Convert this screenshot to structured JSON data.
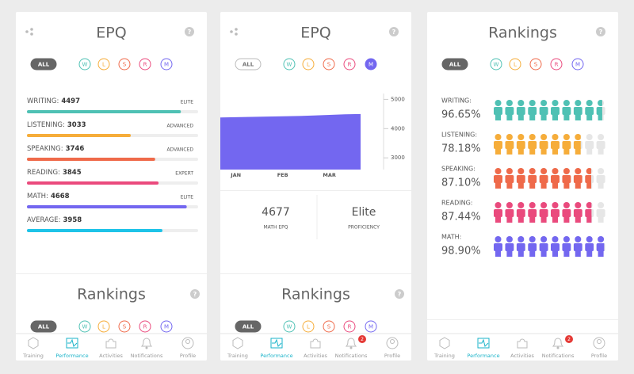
{
  "screens": [
    {
      "title": "EPQ",
      "help": "?",
      "filters": [
        "ALL",
        "W",
        "L",
        "S",
        "R",
        "M"
      ],
      "active_filter": 0,
      "scores": [
        {
          "label": "WRITING:",
          "value": 4497,
          "level": "ELITE"
        },
        {
          "label": "LISTENING:",
          "value": 3033,
          "level": "ADVANCED"
        },
        {
          "label": "SPEAKING:",
          "value": 3746,
          "level": "ADVANCED"
        },
        {
          "label": "READING:",
          "value": 3845,
          "level": "EXPERT"
        },
        {
          "label": "MATH:",
          "value": 4668,
          "level": "ELITE"
        },
        {
          "label": "AVERAGE:",
          "value": 3958
        }
      ],
      "section": "Rankings",
      "section_help": "?",
      "section_filters": [
        "ALL",
        "W",
        "L",
        "S",
        "R",
        "M"
      ],
      "section_active_filter": 0,
      "nav": [
        "Training",
        "Performance",
        "Activities",
        "Notifications",
        "Profile"
      ],
      "nav_active": 1
    },
    {
      "title": "EPQ",
      "help": "?",
      "filters": [
        "ALL",
        "W",
        "L",
        "S",
        "R",
        "M"
      ],
      "active_filter": 5,
      "chart": {
        "type": "area",
        "color": "#7367f0",
        "categories": [
          null,
          "JAN",
          null,
          null,
          "FEB",
          null,
          null,
          "MAR",
          null,
          null
        ],
        "values": [
          4380,
          4390,
          4400,
          4410,
          4420,
          4430,
          4450,
          4470,
          4490,
          4500
        ],
        "ylim": [
          2600,
          5200
        ],
        "yticks": [
          3000,
          4000,
          5000
        ]
      },
      "stats": [
        {
          "value": 4677,
          "label": "MATH EPQ"
        },
        {
          "value": "Elite",
          "label": "PROFICIENCY"
        }
      ],
      "section": "Rankings",
      "section_help": "?",
      "section_filters": [
        "ALL",
        "W",
        "L",
        "S",
        "R",
        "M"
      ],
      "section_active_filter": 0,
      "nav": [
        "Training",
        "Performance",
        "Activities",
        "Notifications",
        "Profile"
      ],
      "nav_active": 1,
      "badge": "2"
    },
    {
      "title": "Rankings",
      "help": "?",
      "filters": [
        "ALL",
        "W",
        "L",
        "S",
        "R",
        "M"
      ],
      "active_filter": 0,
      "rankings": [
        {
          "label": "WRITING:",
          "value": 96.65,
          "value_label": "96.65%"
        },
        {
          "label": "LISTENING:",
          "value": 78.18,
          "value_label": "78.18%"
        },
        {
          "label": "SPEAKING:",
          "value": 87.1,
          "value_label": "87.10%"
        },
        {
          "label": "READING:",
          "value": 87.44,
          "value_label": "87.44%"
        },
        {
          "label": "MATH:",
          "value": 98.9,
          "value_label": "98.90%"
        }
      ],
      "nav": [
        "Training",
        "Performance",
        "Activities",
        "Notifications",
        "Profile"
      ],
      "nav_active": 1,
      "badge": "2"
    }
  ]
}
